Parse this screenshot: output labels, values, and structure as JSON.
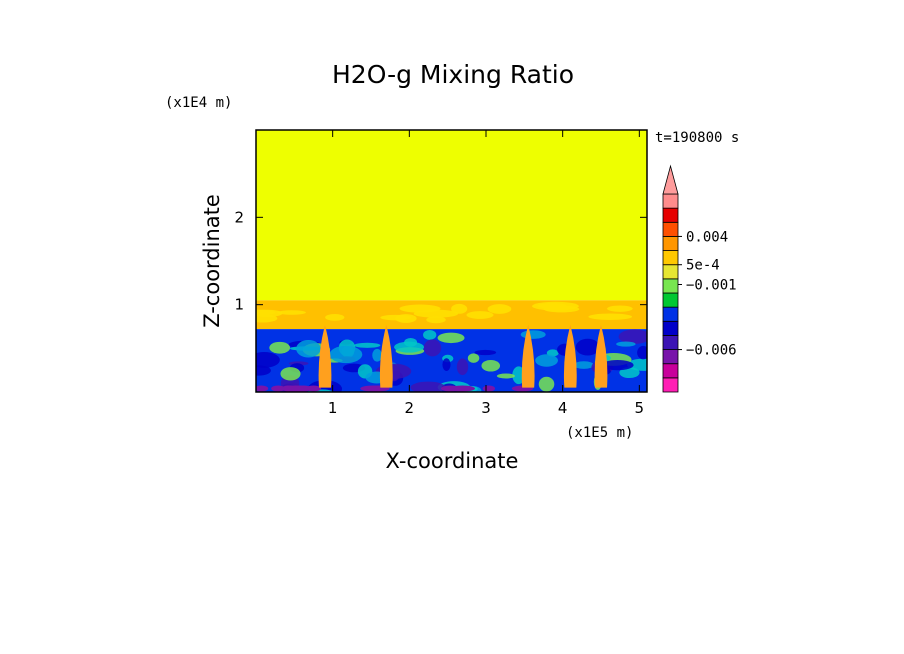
{
  "chart_data": {
    "type": "heatmap",
    "title": "H2O-g Mixing Ratio",
    "xlabel": "X-coordinate",
    "ylabel": "Z-coordinate",
    "x_scale_label": "(x1E5 m)",
    "y_scale_label": "(x1E4 m)",
    "time_label": "t=190800 s",
    "xlim": [
      0,
      5.1
    ],
    "ylim": [
      0,
      3
    ],
    "x_ticks": [
      {
        "value": 1,
        "label": "1"
      },
      {
        "value": 2,
        "label": "2"
      },
      {
        "value": 3,
        "label": "3"
      },
      {
        "value": 4,
        "label": "4"
      },
      {
        "value": 5,
        "label": "5"
      }
    ],
    "y_ticks": [
      {
        "value": 1,
        "label": "1"
      },
      {
        "value": 2,
        "label": "2"
      }
    ],
    "layers": [
      {
        "z_range": [
          1.05,
          3.0
        ],
        "color": "#eeff00"
      },
      {
        "z_range": [
          0.72,
          1.05
        ],
        "color": "#ffc000"
      },
      {
        "z_range": [
          0.0,
          0.72
        ],
        "color": "#0032e6"
      }
    ],
    "plumes_x": [
      0.9,
      1.7,
      3.55,
      4.1,
      4.5
    ],
    "colorbar": {
      "colors": [
        "#ff1eb4",
        "#c8009b",
        "#7814aa",
        "#3c14b4",
        "#0000c8",
        "#0032e6",
        "#00c832",
        "#78e650",
        "#e6e632",
        "#ffc800",
        "#ff9600",
        "#ff5000",
        "#e60000",
        "#ff8c8c"
      ],
      "extend_top_color": "#ff9c9c",
      "labels": [
        {
          "text": "0.004",
          "level": 11
        },
        {
          "text": "5e-4",
          "level": 9
        },
        {
          "text": "−0.001",
          "level": 7.6
        },
        {
          "text": "−0.006",
          "level": 3
        }
      ]
    }
  }
}
